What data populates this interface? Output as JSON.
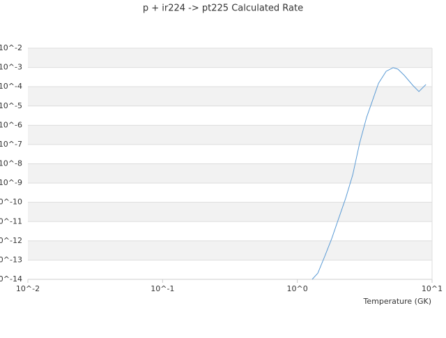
{
  "chart_data": {
    "type": "line",
    "title": "p + ir224 -> pt225 Calculated Rate",
    "x_label": "Temperature (GK)",
    "log_x": true,
    "log_y": true,
    "grid": true,
    "xlim": [
      0.01,
      10
    ],
    "ylim": [
      1e-14,
      0.01
    ],
    "xticks": [
      {
        "value": 0.01,
        "label": "10^-2"
      },
      {
        "value": 0.1,
        "label": "10^-1"
      },
      {
        "value": 1,
        "label": "10^0"
      },
      {
        "value": 10,
        "label": "10^1"
      }
    ],
    "yticks": [
      {
        "value": 1e-14,
        "label": "10^-14"
      },
      {
        "value": 1e-13,
        "label": "10^-13"
      },
      {
        "value": 1e-12,
        "label": "10^-12"
      },
      {
        "value": 1e-11,
        "label": "10^-11"
      },
      {
        "value": 1e-10,
        "label": "10^-10"
      },
      {
        "value": 1e-09,
        "label": "10^-9"
      },
      {
        "value": 1e-08,
        "label": "10^-8"
      },
      {
        "value": 1e-07,
        "label": "10^-7"
      },
      {
        "value": 1e-06,
        "label": "10^-6"
      },
      {
        "value": 1e-05,
        "label": "10^-5"
      },
      {
        "value": 0.0001,
        "label": "10^-4"
      },
      {
        "value": 0.001,
        "label": "10^-3"
      },
      {
        "value": 0.01,
        "label": "10^-2"
      }
    ],
    "x": [
      1.29,
      1.42,
      1.6,
      1.8,
      2.03,
      2.29,
      2.58,
      2.9,
      3.27,
      3.64,
      4.0,
      4.56,
      5.14,
      5.58,
      6.22,
      7.18,
      7.98,
      9.0
    ],
    "series": [
      {
        "color": "#5b9bd5",
        "values": [
          1e-14,
          2.1e-14,
          1.6e-13,
          1.3e-12,
          1.5e-11,
          1.7e-10,
          2.7e-09,
          1.2e-07,
          2.6e-06,
          2.2e-05,
          0.00015,
          0.00063,
          0.00097,
          0.00082,
          0.00039,
          0.00012,
          5.6e-05,
          0.00013
        ]
      }
    ]
  }
}
